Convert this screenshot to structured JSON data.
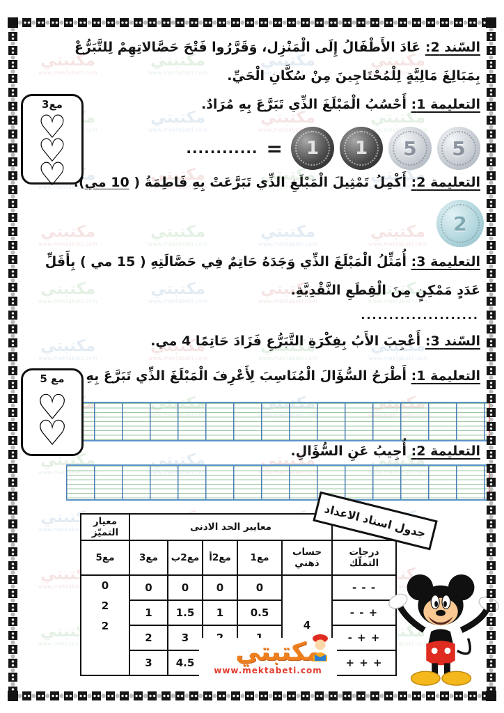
{
  "watermark": {
    "brand": "مكتبتي",
    "url": "www.mektabeti.com"
  },
  "sections": {
    "sanad2": {
      "heading": "السّند 2:",
      "text": " عَادَ الأَطْفَالُ إِلَى الْمَنْزِل، وَقَرَّرُوا فَتْحَ حَصَّالاتِهِمْ لِلتَّبَرُّعْ بِمَبَالِغَ مَالِيَّةٍ لِلْمُحْتَاجِينَ مِنْ سُكَّانِ الْحَيِّ."
    },
    "instr1": {
      "heading": "التعليمة 1:",
      "text": " أَحْسُبُ الْمَبْلَغَ الذِّي تَبَرَّعَ بِهِ مُرَادٌ."
    },
    "equation": {
      "dots": "............",
      "equals": "=",
      "coins": [
        {
          "value": "1"
        },
        {
          "value": "1"
        },
        {
          "value": "5"
        },
        {
          "value": "5"
        }
      ]
    },
    "instr2": {
      "heading": "التعليمة 2:",
      "text_before": " أَكْمِلُ تَمْثِيلَ الْمَبْلَغِ الذِّي تَبَرَّعَتْ بِهِ فَاطِمَةُ ( ",
      "amount": "10 مي",
      "text_after": ")."
    },
    "coin_single": {
      "value": "2"
    },
    "instr3": {
      "heading": "التعليمة 3:",
      "text": " أُمَثِّلُ الْمَبْلَغَ الذِّي وَجَدَهُ حَاتِمٌ فِي حَصَّالَتِهِ ( 15 مي ) بِأَقَلِّ عَدَدٍ مَمْكِنٍ مِنَ الْقِطَعِ النَّقْدِيَّةِ."
    },
    "dots_line": ".....................",
    "sanad3": {
      "heading": "السّند 3:",
      "text": " أَعْجِبَ الأَبُ بِفِكْرَةِ التَّبَرُّعِ فَزَادَ حَاتِمًا 4 مي."
    },
    "instr1b": {
      "heading": "التعليمة 1:",
      "text": " أَطْرَحُ السُّؤَالَ الْمُنَاسِبَ لِأَعْرِفَ الْمَبْلَغَ الذِّي تَبَرَّعَ بِهِ حَاتِمٌ."
    },
    "instr2b": {
      "heading": "التعليمة 2:",
      "text": " أُجِيبُ عَنِ السُّؤَالِ."
    }
  },
  "cards": [
    {
      "label": "مع3",
      "hearts": "♡\n♡\n♡"
    },
    {
      "label": "مع 5",
      "hearts": "♡\n♡"
    }
  ],
  "table": {
    "stamp": "جدول اسناد الاعداد",
    "excellence_header": "معيار التميّز",
    "minimum_header": "معايير الحد الادنى",
    "columns": {
      "mastery": "درجات التملّك",
      "mental": "حساب ذهني",
      "c1": "مع1",
      "c2a": "مع2أ",
      "c2b": "مع2ب",
      "c3": "مع3",
      "c5": "مع5"
    },
    "mental_value": "4",
    "excellence_values": "0\n2\n2",
    "rows": [
      {
        "mastery": "- - -",
        "c1": "0",
        "c2a": "0",
        "c2b": "0",
        "c3": "0"
      },
      {
        "mastery": "- - +",
        "c1": "0.5",
        "c2a": "1",
        "c2b": "1.5",
        "c3": "1"
      },
      {
        "mastery": "- + +",
        "c1": "1",
        "c2a": "2",
        "c2b": "3",
        "c3": "2"
      },
      {
        "mastery": "+ + +",
        "c1": "",
        "c2a": "",
        "c2b": "4.5",
        "c3": "3"
      }
    ]
  },
  "logo": {
    "brand": "مكتبتي",
    "url": "www.mektabeti.com"
  }
}
